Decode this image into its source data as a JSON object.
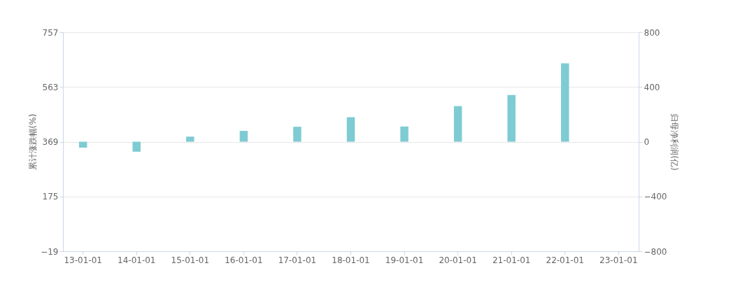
{
  "chart_data": {
    "type": "bar",
    "ylabel": "累计涨跌幅(%)",
    "y2label": "归母净利润(亿)",
    "categories": [
      "13-01-01",
      "14-01-01",
      "15-01-01",
      "16-01-01",
      "17-01-01",
      "18-01-01",
      "19-01-01",
      "20-01-01",
      "21-01-01",
      "22-01-01",
      "23-01-01"
    ],
    "series": [
      {
        "axis": "y2",
        "color": "#7ecbd3",
        "values": [
          -43,
          -73,
          37,
          79,
          109,
          179,
          111,
          260,
          341,
          573,
          null
        ]
      }
    ],
    "ylim": [
      -19,
      757
    ],
    "yticks": [
      -19,
      175,
      369,
      563,
      757
    ],
    "y2lim": [
      -800,
      800
    ],
    "y2ticks": [
      -800,
      -400,
      0,
      400,
      800
    ],
    "grid": "y"
  }
}
